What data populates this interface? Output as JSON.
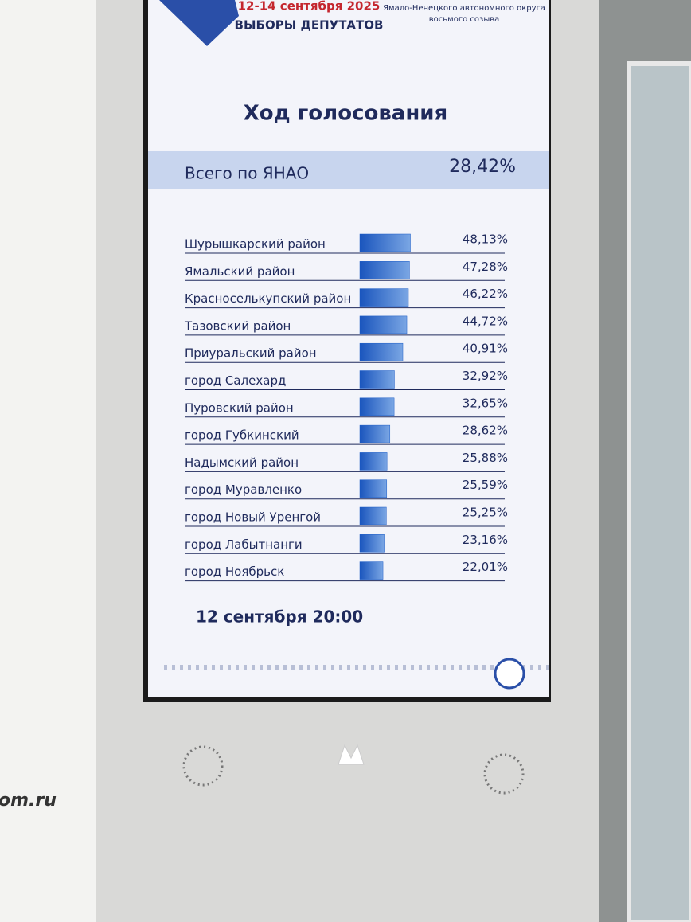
{
  "header": {
    "dates": "12-14 сентября 2025",
    "event": "ВЫБОРЫ ДЕПУТАТОВ",
    "body_line1": "Ямало-Ненецкого автономного округа",
    "body_line2": "восьмого созыва"
  },
  "banner_text": "om.ru",
  "chart_data": {
    "type": "bar",
    "orientation": "horizontal",
    "title": "Ход голосования",
    "total": {
      "label": "Всего по ЯНАО",
      "value": 28.42,
      "value_label": "28,42%"
    },
    "categories": [
      "Шурышкарский район",
      "Ямальский район",
      "Красноселькупский район",
      "Тазовский район",
      "Приуральский район",
      "город Салехард",
      "Пуровский район",
      "город Губкинский",
      "Надымский район",
      "город Муравленко",
      "город Новый Уренгой",
      "город Лабытнанги",
      "город Ноябрьск"
    ],
    "values": [
      48.13,
      47.28,
      46.22,
      44.72,
      40.91,
      32.92,
      32.65,
      28.62,
      25.88,
      25.59,
      25.25,
      23.16,
      22.01
    ],
    "value_labels": [
      "48,13%",
      "47,28%",
      "46,22%",
      "44,72%",
      "40,91%",
      "32,92%",
      "32,65%",
      "28,62%",
      "25,88%",
      "25,59%",
      "25,25%",
      "23,16%",
      "22,01%"
    ],
    "color": "#1c5cc6",
    "xlim": [
      0,
      50
    ],
    "footnote": "12 сентября 20:00"
  }
}
